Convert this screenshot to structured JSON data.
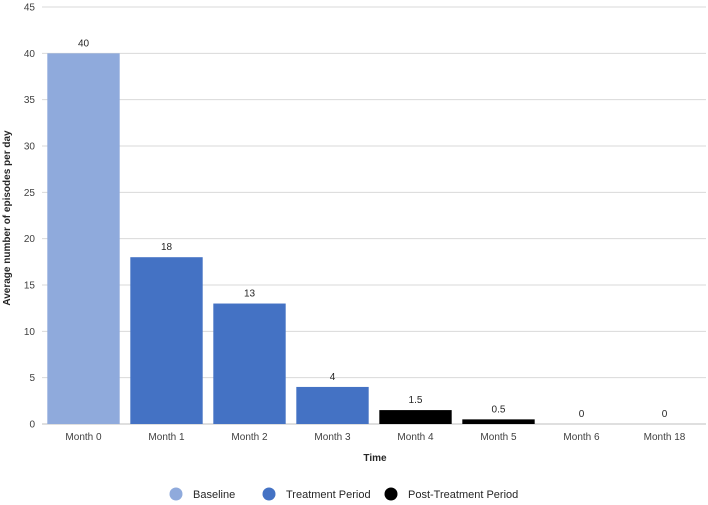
{
  "chart_data": {
    "type": "bar",
    "title": "",
    "xlabel": "Time",
    "ylabel": "Average number of episodes per day",
    "ylim": [
      0,
      45
    ],
    "yticks": [
      0,
      5,
      10,
      15,
      20,
      25,
      30,
      35,
      40,
      45
    ],
    "grid": true,
    "legend_position": "bottom",
    "categories": [
      "Month 0",
      "Month 1",
      "Month 2",
      "Month 3",
      "Month 4",
      "Month 5",
      "Month 6",
      "Month 18"
    ],
    "values": [
      40,
      18,
      13,
      4,
      1.5,
      0.5,
      0,
      0
    ],
    "data_labels": [
      "40",
      "18",
      "13",
      "4",
      "1.5",
      "0.5",
      "0",
      "0"
    ],
    "bar_groups": [
      0,
      1,
      1,
      1,
      2,
      2,
      2,
      2
    ],
    "legend": [
      {
        "name": "Baseline",
        "color": "#8faadc"
      },
      {
        "name": "Treatment Period",
        "color": "#4472c4"
      },
      {
        "name": "Post-Treatment Period",
        "color": "#000000"
      }
    ]
  }
}
